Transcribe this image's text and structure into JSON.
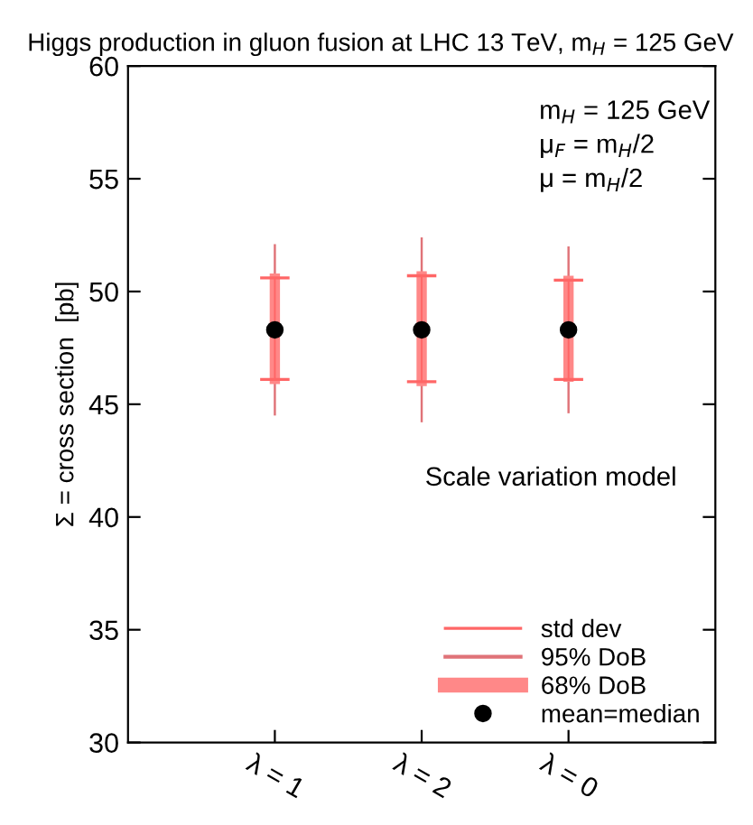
{
  "chart_data": {
    "type": "bar",
    "title": "Higgs production in gluon fusion at LHC 13 TeV, m$_{H}$ = 125 GeV",
    "ylabel": "Σ = cross section  [pb]",
    "categories": [
      "λ = 1",
      "λ = 2",
      "λ = 0"
    ],
    "series": [
      {
        "name": "std dev",
        "color": "#ff6666",
        "base": [
          46.1,
          46.0,
          46.1
        ],
        "values": [
          4.5,
          4.7,
          4.4
        ]
      },
      {
        "name": "95% DoB",
        "color": "#e07378",
        "base": [
          44.5,
          44.2,
          44.6
        ],
        "values": [
          7.6,
          8.2,
          7.4
        ]
      },
      {
        "name": "68% DoB",
        "color": "#ff8888",
        "base": [
          45.9,
          45.8,
          46.0
        ],
        "values": [
          4.9,
          5.1,
          4.7
        ]
      },
      {
        "name": "mean=median",
        "type": "scatter",
        "marker": "circle",
        "color": "#000000",
        "values": [
          48.3,
          48.3,
          48.3
        ]
      }
    ],
    "ylim": [
      30,
      60
    ],
    "yticks": [
      30,
      35,
      40,
      45,
      50,
      55,
      60
    ],
    "annotations": [
      "m$_{H}$ = 125 GeV\nμ$_{F}$ = m$_{H}$/2\nμ = m$_{H}$/2",
      "Scale variation model"
    ],
    "grid": false,
    "legend": "bottom right"
  }
}
